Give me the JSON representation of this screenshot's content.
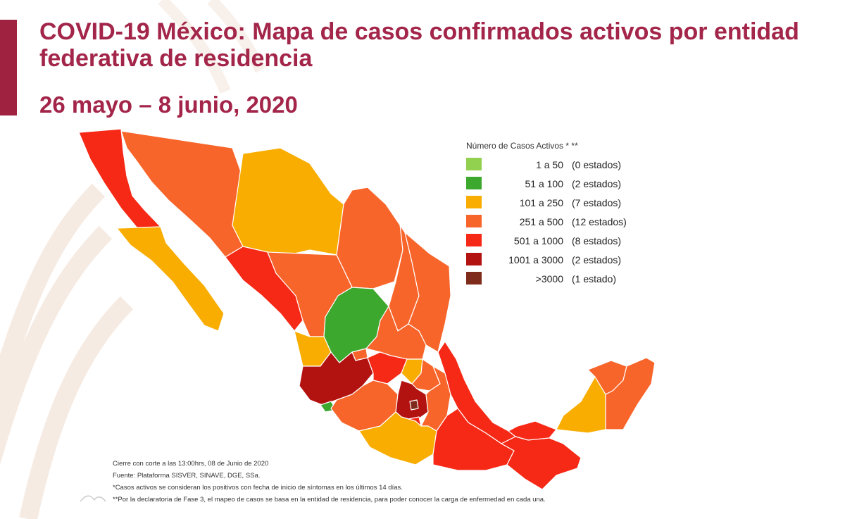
{
  "header": {
    "title": "COVID-19 México: Mapa de casos confirmados activos por entidad federativa de residencia",
    "date_range": "26 mayo – 8 junio, 2020"
  },
  "legend": {
    "title": "Número de Casos Activos * **",
    "items": [
      {
        "range": "1 a 50",
        "count": "(0 estados)",
        "color": "#92d050"
      },
      {
        "range": "51 a 100",
        "count": "(2 estados)",
        "color": "#3ca82e"
      },
      {
        "range": "101 a 250",
        "count": "(7 estados)",
        "color": "#f8ad00"
      },
      {
        "range": "251 a 500",
        "count": "(12 estados)",
        "color": "#f8652a"
      },
      {
        "range": "501 a 1000",
        "count": "(8 estados)",
        "color": "#f62816"
      },
      {
        "range": "1001 a 3000",
        "count": "(2 estados)",
        "color": "#b31310"
      },
      {
        "range": ">3000",
        "count": "(1 estado)",
        "color": "#7f2b1c"
      }
    ]
  },
  "footnotes": [
    "Cierre con corte a las 13:00hrs, 08 de Junio de 2020",
    "Fuente: Plataforma SISVER, SINAVE, DGE, SSa.",
    "*Casos activos se consideran los positivos con fecha de inicio de síntomas en los últimos 14 días.",
    "**Por la declaratoria de Fase 3, el mapeo de casos se basa en la entidad de residencia, para poder conocer la carga de enfermedad en cada una."
  ]
}
